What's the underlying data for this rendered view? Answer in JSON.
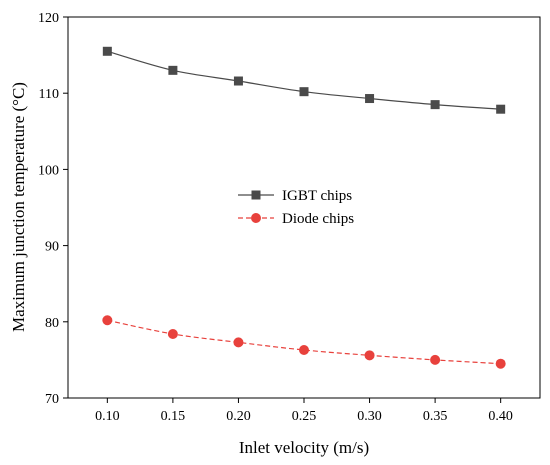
{
  "chart_data": {
    "type": "line",
    "title": "",
    "xlabel": "Inlet velocity (m/s)",
    "ylabel": "Maximum junction temperature (°C)",
    "xlim": [
      0.07,
      0.43
    ],
    "ylim": [
      70,
      120
    ],
    "x": [
      0.1,
      0.15,
      0.2,
      0.25,
      0.3,
      0.35,
      0.4
    ],
    "x_tick_labels": [
      "0.10",
      "0.15",
      "0.20",
      "0.25",
      "0.30",
      "0.35",
      "0.40"
    ],
    "y_ticks": [
      70,
      80,
      90,
      100,
      110,
      120
    ],
    "y_tick_labels": [
      "70",
      "80",
      "90",
      "100",
      "110",
      "120"
    ],
    "grid": false,
    "legend_position": "center-left",
    "series": [
      {
        "name": "IGBT chips",
        "values": [
          115.5,
          113.0,
          111.6,
          110.2,
          109.3,
          108.5,
          107.9
        ],
        "color": "#4a4a4a",
        "marker": "square",
        "line": "solid"
      },
      {
        "name": "Diode chips",
        "values": [
          80.2,
          78.4,
          77.3,
          76.3,
          75.6,
          75.0,
          74.5
        ],
        "color": "#e8413c",
        "marker": "circle",
        "line": "dashed"
      }
    ]
  }
}
